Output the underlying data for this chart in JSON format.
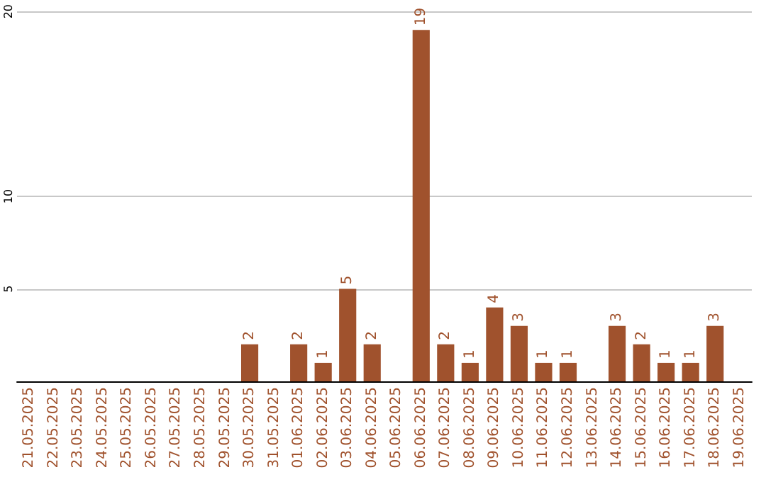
{
  "chart_data": {
    "type": "bar",
    "categories": [
      "21.05.2025",
      "22.05.2025",
      "23.05.2025",
      "24.05.2025",
      "25.05.2025",
      "26.05.2025",
      "27.05.2025",
      "28.05.2025",
      "29.05.2025",
      "30.05.2025",
      "31.05.2025",
      "01.06.2025",
      "02.06.2025",
      "03.06.2025",
      "04.06.2025",
      "05.06.2025",
      "06.06.2025",
      "07.06.2025",
      "08.06.2025",
      "09.06.2025",
      "10.06.2025",
      "11.06.2025",
      "12.06.2025",
      "13.06.2025",
      "14.06.2025",
      "15.06.2025",
      "16.06.2025",
      "17.06.2025",
      "18.06.2025",
      "19.06.2025"
    ],
    "values": [
      0,
      0,
      0,
      0,
      0,
      0,
      0,
      0,
      0,
      2,
      0,
      2,
      1,
      5,
      2,
      0,
      19,
      2,
      1,
      4,
      3,
      1,
      1,
      0,
      3,
      2,
      1,
      1,
      3,
      0
    ],
    "value_labels": [
      null,
      null,
      null,
      null,
      null,
      null,
      null,
      null,
      null,
      "2",
      null,
      "2",
      "1",
      "5",
      "2",
      null,
      "19",
      "2",
      "1",
      "4",
      "3",
      "1",
      "1",
      null,
      "3",
      "2",
      "1",
      "1",
      "3",
      null
    ],
    "color": "#a0522d",
    "ylim": [
      0,
      20
    ],
    "yticks": [
      5,
      10,
      20
    ],
    "grid": "y"
  }
}
